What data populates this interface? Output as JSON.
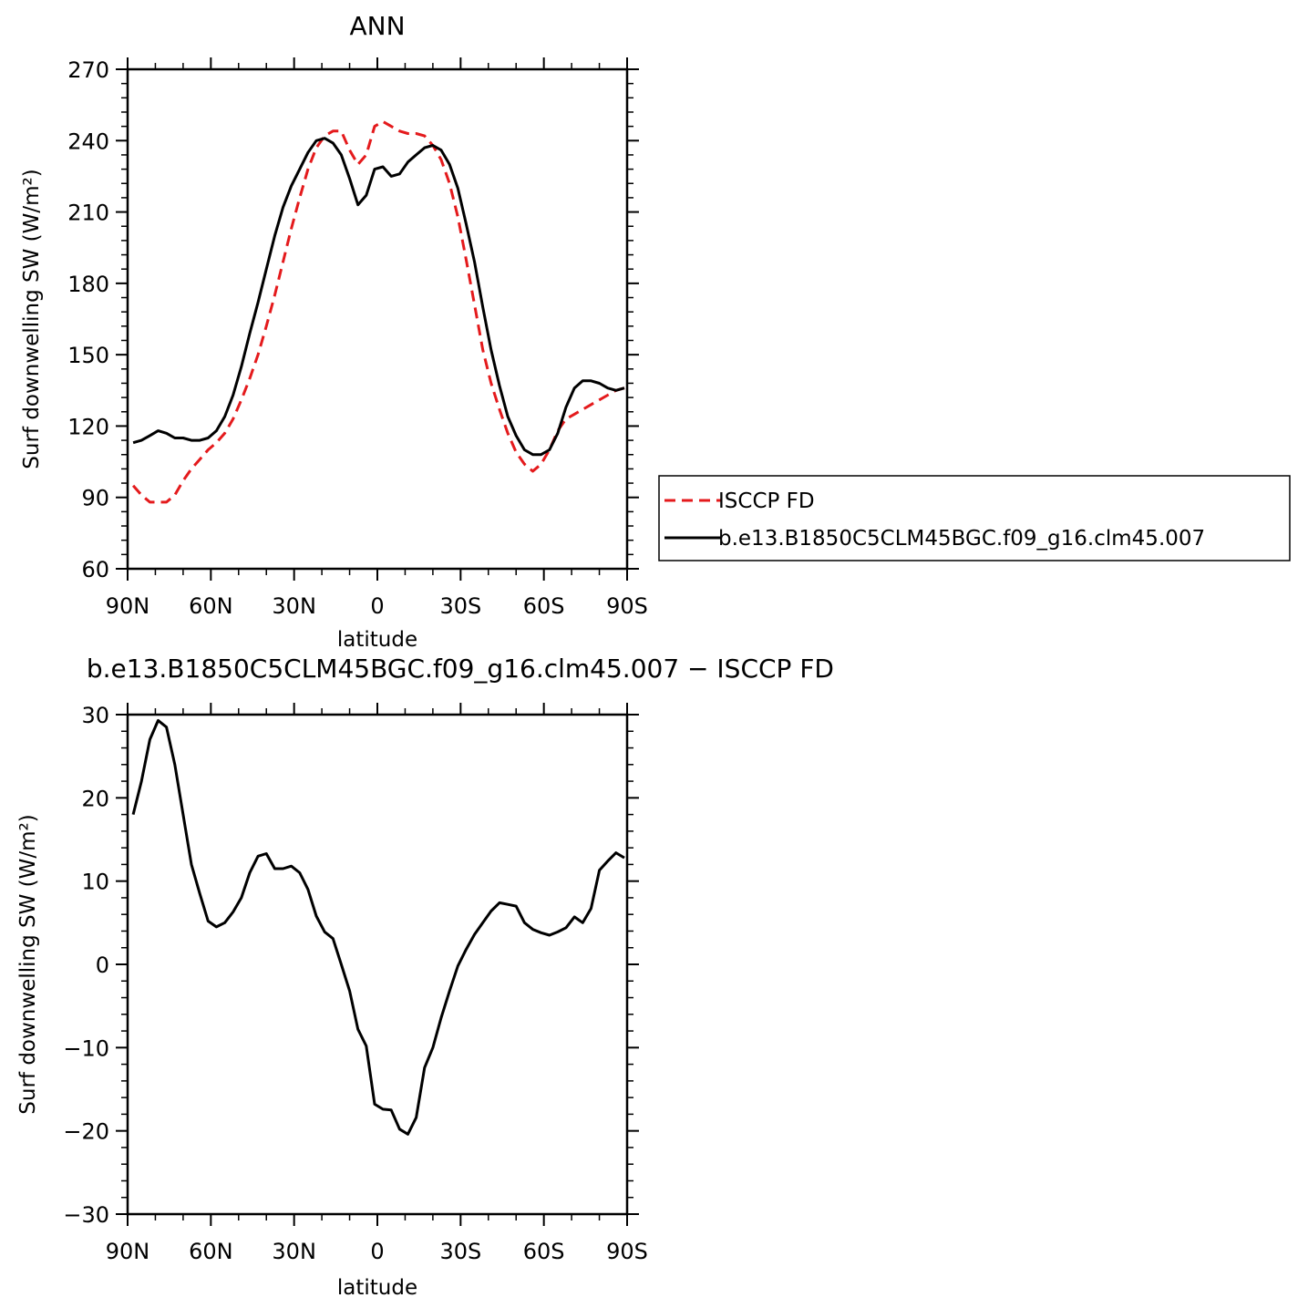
{
  "chart_data": [
    {
      "type": "line",
      "title": "ANN",
      "xlabel": "latitude",
      "ylabel": "Surf downwelling SW (W/m²)",
      "xlim": [
        90,
        -90
      ],
      "ylim": [
        60,
        270
      ],
      "x_tick_values": [
        90,
        60,
        30,
        0,
        -30,
        -60,
        -90
      ],
      "x_tick_labels": [
        "90N",
        "60N",
        "30N",
        "0",
        "30S",
        "60S",
        "90S"
      ],
      "y_tick_values": [
        60,
        90,
        120,
        150,
        180,
        210,
        240,
        270
      ],
      "y_tick_labels": [
        "60",
        "90",
        "120",
        "150",
        "180",
        "210",
        "240",
        "270"
      ],
      "legend": {
        "placement": "right",
        "entries": [
          "ISCCP FD",
          "b.e13.B1850C5CLM45BGC.f09_g16.clm45.007"
        ]
      },
      "series": [
        {
          "name": "ISCCP FD",
          "color": "#e41a1c",
          "dash": "dashed",
          "x": [
            88,
            85,
            82,
            79,
            76,
            73,
            70,
            67,
            64,
            61,
            58,
            55,
            52,
            49,
            46,
            43,
            40,
            37,
            34,
            31,
            28,
            25,
            22,
            19,
            16,
            13,
            10,
            7,
            4,
            1,
            -2,
            -5,
            -8,
            -11,
            -14,
            -17,
            -20,
            -23,
            -26,
            -29,
            -32,
            -35,
            -38,
            -41,
            -44,
            -47,
            -50,
            -53,
            -56,
            -59,
            -62,
            -65,
            -68,
            -71,
            -74,
            -77,
            -80,
            -83,
            -86,
            -89
          ],
          "y": [
            95,
            91,
            88,
            88,
            88,
            91,
            97,
            102,
            106,
            110,
            113,
            117,
            123,
            131,
            140,
            150,
            162,
            175,
            189,
            203,
            216,
            228,
            237,
            242,
            244,
            244,
            236,
            230,
            234,
            246,
            248,
            246,
            244,
            243,
            243,
            242,
            238,
            232,
            222,
            208,
            190,
            171,
            152,
            138,
            127,
            117,
            109,
            104,
            101,
            104,
            110,
            118,
            123,
            125,
            127,
            129,
            131,
            133,
            135,
            136
          ]
        },
        {
          "name": "b.e13.B1850C5CLM45BGC.f09_g16.clm45.007",
          "color": "#000000",
          "dash": "solid",
          "x": [
            88,
            85,
            82,
            79,
            76,
            73,
            70,
            67,
            64,
            61,
            58,
            55,
            52,
            49,
            46,
            43,
            40,
            37,
            34,
            31,
            28,
            25,
            22,
            19,
            16,
            13,
            10,
            7,
            4,
            1,
            -2,
            -5,
            -8,
            -11,
            -14,
            -17,
            -20,
            -23,
            -26,
            -29,
            -32,
            -35,
            -38,
            -41,
            -44,
            -47,
            -50,
            -53,
            -56,
            -59,
            -62,
            -65,
            -68,
            -71,
            -74,
            -77,
            -80,
            -83,
            -86,
            -89
          ],
          "y": [
            113,
            114,
            116,
            118,
            117,
            115,
            115,
            114,
            114,
            115,
            118,
            124,
            133,
            145,
            159,
            172,
            186,
            200,
            212,
            221,
            228,
            235,
            240,
            241,
            239,
            234,
            224,
            213,
            217,
            228,
            229,
            225,
            226,
            231,
            234,
            237,
            238,
            236,
            230,
            220,
            205,
            189,
            170,
            152,
            137,
            124,
            116,
            110,
            108,
            108,
            110,
            117,
            128,
            136,
            139,
            139,
            138,
            136,
            135,
            136
          ]
        }
      ]
    },
    {
      "type": "line",
      "title": "b.e13.B1850C5CLM45BGC.f09_g16.clm45.007 − ISCCP FD",
      "xlabel": "latitude",
      "ylabel": "Surf downwelling SW (W/m²)",
      "xlim": [
        90,
        -90
      ],
      "ylim": [
        -30,
        30
      ],
      "x_tick_values": [
        90,
        60,
        30,
        0,
        -30,
        -60,
        -90
      ],
      "x_tick_labels": [
        "90N",
        "60N",
        "30N",
        "0",
        "30S",
        "60S",
        "90S"
      ],
      "y_tick_values": [
        -30,
        -20,
        -10,
        0,
        10,
        20,
        30
      ],
      "y_tick_labels": [
        "−30",
        "−20",
        "−10",
        "0",
        "10",
        "20",
        "30"
      ],
      "series": [
        {
          "color": "#000000",
          "dash": "solid",
          "x": [
            88,
            85,
            82,
            79,
            76,
            73,
            70,
            67,
            64,
            61,
            58,
            55,
            52,
            49,
            46,
            43,
            40,
            37,
            34,
            31,
            28,
            25,
            22,
            19,
            16,
            13,
            10,
            7,
            4,
            1,
            -2,
            -5,
            -8,
            -11,
            -14,
            -17,
            -20,
            -23,
            -26,
            -29,
            -32,
            -35,
            -38,
            -41,
            -44,
            -47,
            -50,
            -53,
            -56,
            -59,
            -62,
            -65,
            -68,
            -71,
            -74,
            -77,
            -80,
            -83,
            -86,
            -89
          ],
          "y": [
            18,
            22,
            27,
            29.3,
            28.5,
            24,
            18,
            12,
            8.5,
            5.2,
            4.5,
            5,
            6.3,
            8,
            11,
            13,
            13.3,
            11.5,
            11.5,
            11.8,
            11,
            9,
            5.8,
            3.9,
            3.1,
            0,
            -3.2,
            -7.8,
            -9.8,
            -16.8,
            -17.4,
            -17.5,
            -19.8,
            -20.4,
            -18.4,
            -12.4,
            -10,
            -6.4,
            -3.2,
            -0.2,
            1.8,
            3.6,
            5,
            6.4,
            7.4,
            7.2,
            7,
            5,
            4.2,
            3.8,
            3.5,
            3.9,
            4.4,
            5.7,
            5,
            6.7,
            11.3,
            12.4,
            13.4,
            12.8
          ]
        }
      ]
    }
  ]
}
